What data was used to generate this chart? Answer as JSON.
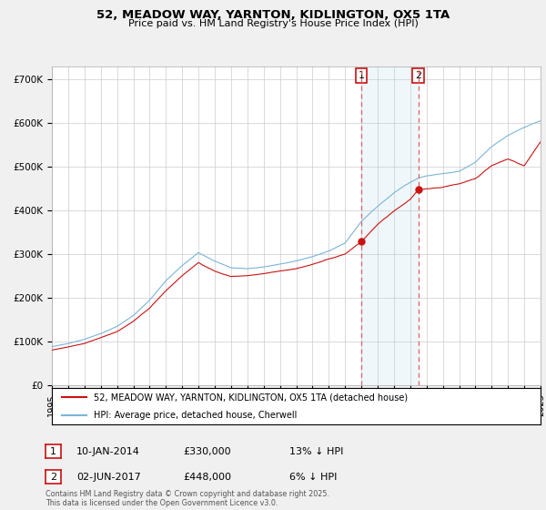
{
  "title_line1": "52, MEADOW WAY, YARNTON, KIDLINGTON, OX5 1TA",
  "title_line2": "Price paid vs. HM Land Registry's House Price Index (HPI)",
  "hpi_color": "#7ab4d8",
  "sale_color": "#cc1111",
  "background_color": "#f0f0f0",
  "plot_bg_color": "#ffffff",
  "grid_color": "#cccccc",
  "marker1_date_idx": 228,
  "marker2_date_idx": 270,
  "marker1_sale_val": 330000,
  "marker2_sale_val": 448000,
  "marker1_label": "10-JAN-2014",
  "marker1_price": "£330,000",
  "marker1_pct": "13% ↓ HPI",
  "marker2_label": "02-JUN-2017",
  "marker2_price": "£448,000",
  "marker2_pct": "6% ↓ HPI",
  "legend_line1": "52, MEADOW WAY, YARNTON, KIDLINGTON, OX5 1TA (detached house)",
  "legend_line2": "HPI: Average price, detached house, Cherwell",
  "footer": "Contains HM Land Registry data © Crown copyright and database right 2025.\nThis data is licensed under the Open Government Licence v3.0.",
  "ytick_labels": [
    "£0",
    "£100K",
    "£200K",
    "£300K",
    "£400K",
    "£500K",
    "£600K",
    "£700K"
  ],
  "ytick_values": [
    0,
    100000,
    200000,
    300000,
    400000,
    500000,
    600000,
    700000
  ],
  "ylim": [
    0,
    730000
  ],
  "n_months": 361,
  "start_year": 1995,
  "end_year": 2025
}
